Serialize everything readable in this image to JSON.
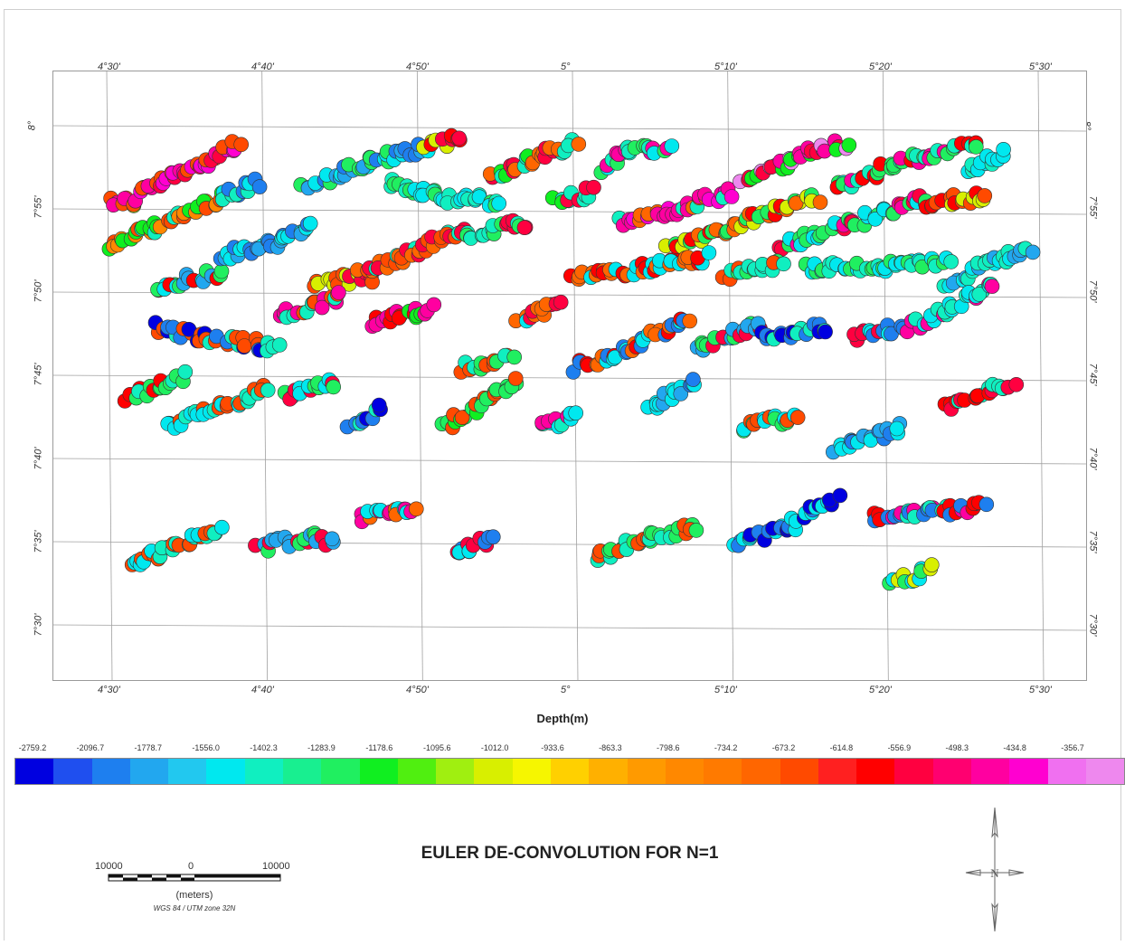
{
  "title": "EULER DE-CONVOLUTION FOR N=1",
  "x_axis": {
    "title": "Depth(m)",
    "ticks": [
      "4°30'",
      "4°40'",
      "4°50'",
      "5°",
      "5°10'",
      "5°20'",
      "5°30'"
    ]
  },
  "y_axis": {
    "ticks": [
      "8°",
      "7°55'",
      "7°50'",
      "7°45'",
      "7°40'",
      "7°35'",
      "7°30'"
    ]
  },
  "colorbar": {
    "labels": [
      "-2759.2",
      "-2096.7",
      "-1778.7",
      "-1556.0",
      "-1402.3",
      "-1283.9",
      "-1178.6",
      "-1095.6",
      "-1012.0",
      "-933.6",
      "-863.3",
      "-798.6",
      "-734.2",
      "-673.2",
      "-614.8",
      "-556.9",
      "-498.3",
      "-434.8",
      "-356.7"
    ],
    "colors": [
      "#0000e0",
      "#1f4fef",
      "#1e7fef",
      "#22a7ef",
      "#22c8ef",
      "#00e8ef",
      "#10efc0",
      "#18ef90",
      "#20ef60",
      "#10ef20",
      "#50ef10",
      "#a0ef10",
      "#d8ef00",
      "#f6f600",
      "#ffd000",
      "#ffb000",
      "#ff9a00",
      "#ff8800",
      "#ff7a00",
      "#ff6600",
      "#ff4a00",
      "#ff2020",
      "#ff0000",
      "#ff0040",
      "#ff0070",
      "#ff00a0",
      "#ff00d0",
      "#f070f0",
      "#ee88ee"
    ]
  },
  "scale_bar": {
    "left_label": "10000",
    "mid_label": "0",
    "right_label": "10000",
    "units": "(meters)",
    "projection": "WGS 84 / UTM zone 32N"
  },
  "north_arrow": {
    "label": "N"
  },
  "chart_data": {
    "type": "scatter",
    "title": "EULER DE-CONVOLUTION FOR N=1",
    "xlabel": "Depth(m)",
    "x_range_deg": [
      4.5,
      5.5
    ],
    "y_range_deg": [
      7.5,
      8.0
    ],
    "depth_classes": [
      "-2759.2",
      "-2096.7",
      "-1778.7",
      "-1556.0",
      "-1402.3",
      "-1283.9",
      "-1178.6",
      "-1095.6",
      "-1012.0",
      "-933.6",
      "-863.3",
      "-798.6",
      "-734.2",
      "-673.2",
      "-614.8",
      "-556.9",
      "-498.3",
      "-434.8",
      "-356.7"
    ],
    "clusters": [
      {
        "path": [
          [
            4.5,
            7.927
          ],
          [
            4.53,
            7.925
          ]
        ],
        "depths": [
          "-1095.6",
          "-673.2",
          "-498.3"
        ]
      },
      {
        "path": [
          [
            4.53,
            7.935
          ],
          [
            4.58,
            7.955
          ],
          [
            4.64,
            7.985
          ]
        ],
        "depths": [
          "-556.9",
          "-434.8",
          "-673.2",
          "-498.3"
        ]
      },
      {
        "path": [
          [
            4.5,
            7.88
          ],
          [
            4.55,
            7.9
          ],
          [
            4.62,
            7.93
          ]
        ],
        "depths": [
          "-1402.3",
          "-798.6",
          "-673.2",
          "-1178.6"
        ]
      },
      {
        "path": [
          [
            4.62,
            7.93
          ],
          [
            4.66,
            7.945
          ]
        ],
        "depths": [
          "-2096.7",
          "-1556.0",
          "-1402.3"
        ]
      },
      {
        "path": [
          [
            4.71,
            7.94
          ],
          [
            4.78,
            7.965
          ],
          [
            4.84,
            7.98
          ]
        ],
        "depths": [
          "-2096.7",
          "-1778.7",
          "-1556.0",
          "-1283.9"
        ]
      },
      {
        "path": [
          [
            4.84,
            7.98
          ],
          [
            4.88,
            7.99
          ]
        ],
        "depths": [
          "-1012.0",
          "-614.8",
          "-556.9"
        ]
      },
      {
        "path": [
          [
            4.8,
            7.945
          ],
          [
            4.86,
            7.93
          ],
          [
            4.92,
            7.925
          ]
        ],
        "depths": [
          "-1556.0",
          "-1402.3",
          "-1283.9"
        ]
      },
      {
        "path": [
          [
            4.91,
            7.95
          ],
          [
            4.97,
            7.975
          ],
          [
            5.0,
            7.985
          ]
        ],
        "depths": [
          "-1178.6",
          "-734.2",
          "-556.9",
          "-1402.3"
        ]
      },
      {
        "path": [
          [
            5.03,
            7.96
          ],
          [
            5.05,
            7.975
          ],
          [
            5.1,
            7.98
          ]
        ],
        "depths": [
          "-1556.0",
          "-1402.3",
          "-1283.9",
          "-498.3"
        ]
      },
      {
        "path": [
          [
            4.98,
            7.925
          ],
          [
            5.02,
            7.935
          ]
        ],
        "depths": [
          "-1178.6",
          "-556.9",
          "-1402.3"
        ]
      },
      {
        "path": [
          [
            5.05,
            7.905
          ],
          [
            5.1,
            7.915
          ],
          [
            5.17,
            7.935
          ]
        ],
        "depths": [
          "-498.3",
          "-434.8",
          "-734.2",
          "-1402.3"
        ]
      },
      {
        "path": [
          [
            5.18,
            7.945
          ],
          [
            5.25,
            7.975
          ],
          [
            5.29,
            7.985
          ]
        ],
        "depths": [
          "-498.3",
          "-556.9",
          "-356.7",
          "-1178.6"
        ]
      },
      {
        "path": [
          [
            5.28,
            7.94
          ],
          [
            5.35,
            7.965
          ],
          [
            5.43,
            7.985
          ]
        ],
        "depths": [
          "-614.8",
          "-498.3",
          "-1283.9",
          "-1402.3"
        ]
      },
      {
        "path": [
          [
            5.42,
            7.955
          ],
          [
            5.46,
            7.975
          ]
        ],
        "depths": [
          "-1556.0",
          "-1402.3"
        ]
      },
      {
        "path": [
          [
            5.1,
            7.88
          ],
          [
            5.18,
            7.905
          ],
          [
            5.26,
            7.93
          ]
        ],
        "depths": [
          "-734.2",
          "-614.8",
          "-1012.0",
          "-1283.9"
        ]
      },
      {
        "path": [
          [
            5.22,
            7.88
          ],
          [
            5.3,
            7.905
          ],
          [
            5.38,
            7.93
          ]
        ],
        "depths": [
          "-1283.9",
          "-498.3",
          "-556.9",
          "-1556.0"
        ]
      },
      {
        "path": [
          [
            5.38,
            7.925
          ],
          [
            5.44,
            7.93
          ]
        ],
        "depths": [
          "-614.8",
          "-1012.0",
          "-673.2"
        ]
      },
      {
        "path": [
          [
            4.55,
            7.84
          ],
          [
            4.62,
            7.855
          ]
        ],
        "depths": [
          "-1556.0",
          "-1778.7",
          "-1283.9",
          "-614.8"
        ]
      },
      {
        "path": [
          [
            4.62,
            7.87
          ],
          [
            4.68,
            7.885
          ],
          [
            4.72,
            7.9
          ]
        ],
        "depths": [
          "-2096.7",
          "-1778.7",
          "-1556.0"
        ]
      },
      {
        "path": [
          [
            4.72,
            7.845
          ],
          [
            4.78,
            7.85
          ]
        ],
        "depths": [
          "-1012.0",
          "-673.2",
          "-556.9"
        ]
      },
      {
        "path": [
          [
            4.77,
            7.855
          ],
          [
            4.84,
            7.88
          ],
          [
            4.88,
            7.9
          ]
        ],
        "depths": [
          "-673.2",
          "-734.2",
          "-1402.3",
          "-556.9"
        ]
      },
      {
        "path": [
          [
            4.88,
            7.89
          ],
          [
            4.95,
            7.905
          ]
        ],
        "depths": [
          "-1402.3",
          "-1283.9",
          "-556.9"
        ]
      },
      {
        "path": [
          [
            5.0,
            7.85
          ],
          [
            5.08,
            7.86
          ],
          [
            5.14,
            7.87
          ]
        ],
        "depths": [
          "-614.8",
          "-734.2",
          "-1556.0"
        ]
      },
      {
        "path": [
          [
            5.16,
            7.85
          ],
          [
            5.22,
            7.865
          ]
        ],
        "depths": [
          "-1402.3",
          "-1283.9",
          "-673.2"
        ]
      },
      {
        "path": [
          [
            5.25,
            7.86
          ],
          [
            5.33,
            7.86
          ],
          [
            5.4,
            7.865
          ]
        ],
        "depths": [
          "-1556.0",
          "-1283.9",
          "-1402.3"
        ]
      },
      {
        "path": [
          [
            5.4,
            7.845
          ],
          [
            5.46,
            7.87
          ],
          [
            5.49,
            7.88
          ]
        ],
        "depths": [
          "-1556.0",
          "-1402.3",
          "-1778.7"
        ]
      },
      {
        "path": [
          [
            4.55,
            7.8
          ],
          [
            4.6,
            7.79
          ],
          [
            4.68,
            7.78
          ]
        ],
        "depths": [
          "-2759.2",
          "-2096.7",
          "-1402.3",
          "-673.2"
        ]
      },
      {
        "path": [
          [
            4.68,
            7.81
          ],
          [
            4.75,
            7.83
          ]
        ],
        "depths": [
          "-1402.3",
          "-498.3",
          "-673.2"
        ]
      },
      {
        "path": [
          [
            4.78,
            7.805
          ],
          [
            4.85,
            7.82
          ]
        ],
        "depths": [
          "-1178.6",
          "-614.8",
          "-498.3"
        ]
      },
      {
        "path": [
          [
            4.88,
            7.76
          ],
          [
            4.93,
            7.77
          ]
        ],
        "depths": [
          "-1402.3",
          "-1283.9",
          "-673.2"
        ]
      },
      {
        "path": [
          [
            4.94,
            7.805
          ],
          [
            4.98,
            7.825
          ]
        ],
        "depths": [
          "-1556.0",
          "-734.2",
          "-556.9"
        ]
      },
      {
        "path": [
          [
            5.0,
            7.76
          ],
          [
            5.06,
            7.78
          ],
          [
            5.12,
            7.81
          ]
        ],
        "depths": [
          "-2096.7",
          "-1556.0",
          "-734.2",
          "-614.8"
        ]
      },
      {
        "path": [
          [
            5.13,
            7.78
          ],
          [
            5.2,
            7.805
          ]
        ],
        "depths": [
          "-1778.7",
          "-1283.9",
          "-556.9"
        ]
      },
      {
        "path": [
          [
            5.2,
            7.79
          ],
          [
            5.27,
            7.8
          ]
        ],
        "depths": [
          "-2759.2",
          "-2096.7",
          "-1402.3"
        ]
      },
      {
        "path": [
          [
            5.3,
            7.79
          ],
          [
            5.35,
            7.8
          ]
        ],
        "depths": [
          "-2096.7",
          "-1556.0",
          "-556.9"
        ]
      },
      {
        "path": [
          [
            5.36,
            7.8
          ],
          [
            5.45,
            7.845
          ]
        ],
        "depths": [
          "-1556.0",
          "-1402.3",
          "-498.3"
        ]
      },
      {
        "path": [
          [
            4.52,
            7.73
          ],
          [
            4.58,
            7.75
          ]
        ],
        "depths": [
          "-1402.3",
          "-1283.9",
          "-614.8"
        ]
      },
      {
        "path": [
          [
            4.56,
            7.7
          ],
          [
            4.62,
            7.72
          ],
          [
            4.67,
            7.74
          ]
        ],
        "depths": [
          "-1556.0",
          "-1402.3",
          "-673.2"
        ]
      },
      {
        "path": [
          [
            4.69,
            7.73
          ],
          [
            4.74,
            7.745
          ]
        ],
        "depths": [
          "-1556.0",
          "-1283.9",
          "-556.9"
        ]
      },
      {
        "path": [
          [
            4.76,
            7.7
          ],
          [
            4.79,
            7.72
          ]
        ],
        "depths": [
          "-2759.2",
          "-2096.7",
          "-1402.3"
        ]
      },
      {
        "path": [
          [
            4.86,
            7.7
          ],
          [
            4.91,
            7.73
          ],
          [
            4.94,
            7.745
          ]
        ],
        "depths": [
          "-1283.9",
          "-1178.6",
          "-673.2"
        ]
      },
      {
        "path": [
          [
            4.96,
            7.7
          ],
          [
            5.0,
            7.71
          ]
        ],
        "depths": [
          "-1556.0",
          "-1402.3",
          "-498.3"
        ]
      },
      {
        "path": [
          [
            5.08,
            7.72
          ],
          [
            5.13,
            7.745
          ]
        ],
        "depths": [
          "-2096.7",
          "-1778.7",
          "-1556.0"
        ]
      },
      {
        "path": [
          [
            5.18,
            7.7
          ],
          [
            5.24,
            7.71
          ]
        ],
        "depths": [
          "-1556.0",
          "-1283.9",
          "-673.2"
        ]
      },
      {
        "path": [
          [
            5.28,
            7.68
          ],
          [
            5.35,
            7.7
          ]
        ],
        "depths": [
          "-2096.7",
          "-1778.7",
          "-1556.0"
        ]
      },
      {
        "path": [
          [
            5.4,
            7.72
          ],
          [
            5.47,
            7.745
          ]
        ],
        "depths": [
          "-1402.3",
          "-556.9",
          "-614.8"
        ]
      },
      {
        "path": [
          [
            4.52,
            7.56
          ],
          [
            4.56,
            7.575
          ],
          [
            4.62,
            7.6
          ]
        ],
        "depths": [
          "-1556.0",
          "-1402.3",
          "-673.2"
        ]
      },
      {
        "path": [
          [
            4.66,
            7.58
          ],
          [
            4.72,
            7.59
          ],
          [
            4.74,
            7.585
          ]
        ],
        "depths": [
          "-1778.7",
          "-1283.9",
          "-556.9"
        ]
      },
      {
        "path": [
          [
            4.77,
            7.61
          ],
          [
            4.83,
            7.62
          ]
        ],
        "depths": [
          "-1556.0",
          "-734.2",
          "-498.3"
        ]
      },
      {
        "path": [
          [
            4.87,
            7.57
          ],
          [
            4.91,
            7.59
          ]
        ],
        "depths": [
          "-2096.7",
          "-1556.0",
          "-556.9"
        ]
      },
      {
        "path": [
          [
            5.02,
            7.57
          ],
          [
            5.08,
            7.59
          ],
          [
            5.13,
            7.6
          ]
        ],
        "depths": [
          "-1402.3",
          "-1283.9",
          "-673.2"
        ]
      },
      {
        "path": [
          [
            5.17,
            7.58
          ],
          [
            5.23,
            7.6
          ],
          [
            5.28,
            7.63
          ]
        ],
        "depths": [
          "-2759.2",
          "-2096.7",
          "-1556.0"
        ]
      },
      {
        "path": [
          [
            5.32,
            7.61
          ],
          [
            5.38,
            7.615
          ],
          [
            5.44,
            7.62
          ]
        ],
        "depths": [
          "-2096.7",
          "-1402.3",
          "-614.8",
          "-498.3"
        ]
      },
      {
        "path": [
          [
            5.34,
            7.54
          ],
          [
            5.38,
            7.56
          ]
        ],
        "depths": [
          "-1556.0",
          "-1283.9",
          "-1012.0"
        ]
      }
    ]
  }
}
